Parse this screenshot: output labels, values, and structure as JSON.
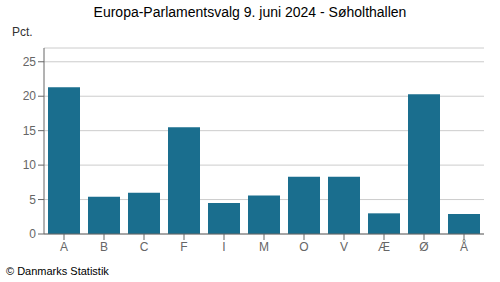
{
  "chart_data": {
    "type": "bar",
    "title": "Europa-Parlamentsvalg 9. juni 2024 - Søholthallen",
    "ylabel": "Pct.",
    "footer": "© Danmarks Statistik",
    "categories": [
      "A",
      "B",
      "C",
      "F",
      "I",
      "M",
      "O",
      "V",
      "Æ",
      "Ø",
      "Å"
    ],
    "values": [
      21.3,
      5.4,
      6.0,
      15.5,
      4.5,
      5.6,
      8.3,
      8.3,
      3.0,
      20.3,
      2.9
    ],
    "color": "#1a6e8e",
    "ylim": [
      0,
      27
    ],
    "yticks": [
      0,
      5,
      10,
      15,
      20,
      25
    ],
    "grid": true
  }
}
